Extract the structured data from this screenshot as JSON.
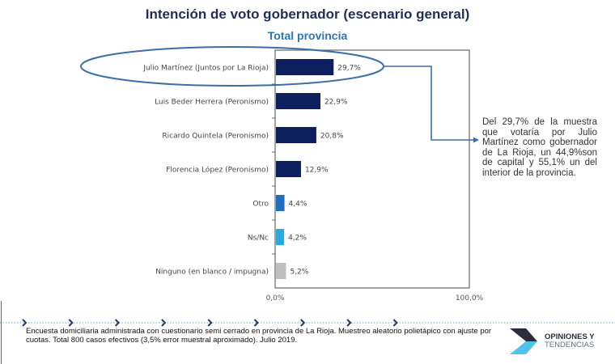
{
  "chart_data": {
    "type": "bar",
    "orientation": "horizontal",
    "title": "Intención de voto gobernador (escenario general)",
    "subtitle": "Total provincia",
    "categories": [
      "Julio Martínez (Juntos por La Rioja)",
      "Luis Beder Herrera (Peronismo)",
      "Ricardo Quintela (Peronismo)",
      "Florencia López (Peronismo)",
      "Otro",
      "Ns/Nc",
      "Ninguno (en blanco / impugna)"
    ],
    "values": [
      29.7,
      22.9,
      20.8,
      12.9,
      4.4,
      4.2,
      5.2
    ],
    "value_labels": [
      "29,7%",
      "22,9%",
      "20,8%",
      "12,9%",
      "4,4%",
      "4,2%",
      "5,2%"
    ],
    "colors": [
      "#0d1f5c",
      "#0d1f5c",
      "#0d1f5c",
      "#0d1f5c",
      "#1f6fc1",
      "#29abe2",
      "#bfbfbf"
    ],
    "xlim": [
      0,
      100
    ],
    "xticks": [
      "0,0%",
      "100,0%"
    ],
    "grid": false
  },
  "annotation": "Del 29,7% de la muestra que votaría por Julio Martínez como gobernador de La Rioja, un 44,9%son de capital y 55,1% un del interior de la provincia.",
  "footer": "Encuesta domiciliaria administrada con cuestionario semi cerrado en provincia de La Rioja. Muestreo aleatorio polietápico con ajuste por cuotas. Total 800 casos efectivos (3,5% error muestral aproximado). Julio 2019.",
  "logo": {
    "line1": "OPINIONES Y",
    "line2": "TENDENCIAS"
  },
  "colors": {
    "title": "#1f2d5a",
    "subtitle": "#2e75b6",
    "highlight": "#3a6ea5"
  }
}
